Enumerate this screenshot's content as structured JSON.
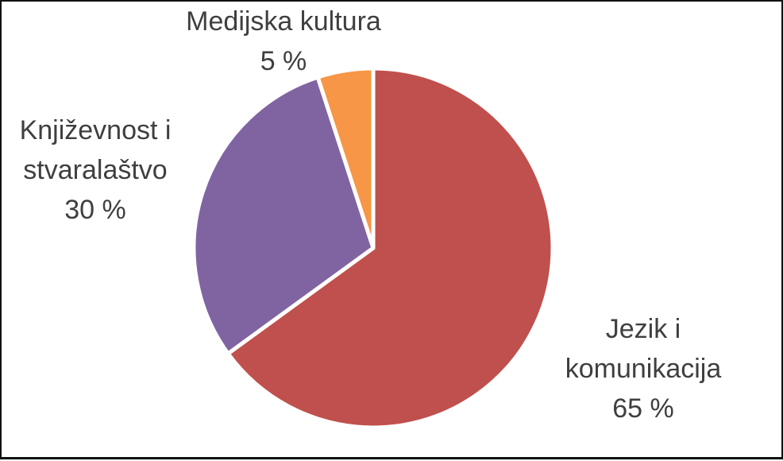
{
  "chart_data": {
    "type": "pie",
    "title": "",
    "start_at": "12-oclock",
    "direction": "clockwise",
    "legend": "none",
    "slice_border_color": "#ffffff",
    "text_color": "#3f3f3f",
    "frame_border_color": "#121212",
    "categories": [
      "Jezik i komunikacija",
      "Književnost i stvaralaštvo",
      "Medijska kultura"
    ],
    "values": [
      65,
      30,
      5
    ],
    "slices": [
      {
        "name": "Jezik i komunikacija",
        "value": 65,
        "color": "#c0504d"
      },
      {
        "name": "Književnost i stvaralaštvo",
        "value": 30,
        "color": "#8064a2"
      },
      {
        "name": "Medijska kultura",
        "value": 5,
        "color": "#f79646"
      }
    ],
    "labels": {
      "jezik": {
        "line1": "Jezik i",
        "line2": "komunikacija",
        "line3": "65 %"
      },
      "knjizevnost": {
        "line1": "Književnost i",
        "line2": "stvaralaštvo",
        "line3": "30 %"
      },
      "medijska": {
        "line1": "Medijska kultura",
        "line2": "5 %"
      }
    }
  }
}
